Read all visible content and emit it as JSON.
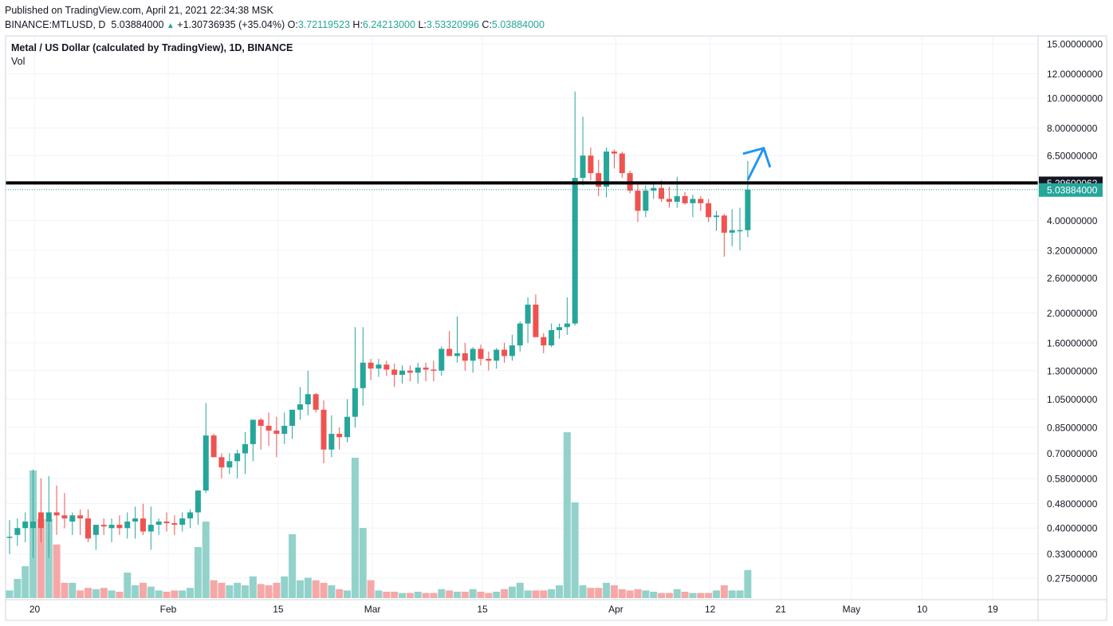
{
  "header": {
    "published": "Published on TradingView.com, April 21, 2021 22:34:38 MSK",
    "symbol": "BINANCE:MTLUSD, D",
    "last": "5.03884000",
    "change": "+1.30736935 (+35.04%)",
    "o_label": "O:",
    "o_value": "3.72119523",
    "h_label": "H:",
    "h_value": "6.24213000",
    "l_label": "L:",
    "l_value": "3.53320996",
    "c_label": "C:",
    "c_value": "5.03884000"
  },
  "legend": {
    "title": "Metal / US Dollar (calculated by TradingView), 1D, BINANCE",
    "volume": "Vol"
  },
  "colors": {
    "up": "#26a69a",
    "down": "#ef5350",
    "vol_up": "#93d2cb",
    "vol_down": "#f5a8a7",
    "hline": "#000000",
    "drawing": "#2196f3",
    "grid": "#f0f3fa"
  },
  "chart_data": {
    "type": "candlestick",
    "scale": "log",
    "y_ticks": [
      "15.00000000",
      "12.00000000",
      "10.00000000",
      "8.00000000",
      "6.50000000",
      "5.29600062",
      "5.03884000",
      "4.00000000",
      "3.20000000",
      "2.60000000",
      "2.00000000",
      "1.60000000",
      "1.30000000",
      "1.05000000",
      "0.85000000",
      "0.70000000",
      "0.58000000",
      "0.48000000",
      "0.40000000",
      "0.33000000",
      "0.27500000"
    ],
    "x_ticks": [
      "20",
      "Feb",
      "15",
      "Mar",
      "15",
      "Apr",
      "12",
      "21",
      "May",
      "10",
      "19"
    ],
    "horizontal_line": 5.29600062,
    "last_price": 5.03884,
    "candles": [
      [
        0.375,
        0.425,
        0.33,
        0.375,
        0.06
      ],
      [
        0.38,
        0.43,
        0.35,
        0.4,
        0.15
      ],
      [
        0.4,
        0.45,
        0.36,
        0.42,
        0.25
      ],
      [
        0.4,
        0.62,
        0.32,
        0.42,
        1.0
      ],
      [
        0.45,
        0.58,
        0.36,
        0.4,
        0.62
      ],
      [
        0.42,
        0.59,
        0.32,
        0.45,
        0.62
      ],
      [
        0.45,
        0.55,
        0.38,
        0.44,
        0.42
      ],
      [
        0.44,
        0.52,
        0.4,
        0.43,
        0.12
      ],
      [
        0.42,
        0.45,
        0.38,
        0.44,
        0.12
      ],
      [
        0.44,
        0.46,
        0.38,
        0.43,
        0.06
      ],
      [
        0.43,
        0.46,
        0.36,
        0.37,
        0.08
      ],
      [
        0.38,
        0.4,
        0.34,
        0.41,
        0.07
      ],
      [
        0.41,
        0.43,
        0.38,
        0.405,
        0.08
      ],
      [
        0.4,
        0.43,
        0.36,
        0.41,
        0.06
      ],
      [
        0.41,
        0.44,
        0.38,
        0.4,
        0.05
      ],
      [
        0.4,
        0.45,
        0.37,
        0.42,
        0.2
      ],
      [
        0.42,
        0.47,
        0.37,
        0.43,
        0.1
      ],
      [
        0.43,
        0.48,
        0.38,
        0.39,
        0.12
      ],
      [
        0.39,
        0.47,
        0.34,
        0.41,
        0.09
      ],
      [
        0.41,
        0.43,
        0.38,
        0.42,
        0.06
      ],
      [
        0.42,
        0.45,
        0.39,
        0.415,
        0.05
      ],
      [
        0.415,
        0.44,
        0.38,
        0.41,
        0.06
      ],
      [
        0.41,
        0.45,
        0.39,
        0.43,
        0.06
      ],
      [
        0.43,
        0.46,
        0.4,
        0.45,
        0.08
      ],
      [
        0.45,
        0.48,
        0.41,
        0.53,
        0.4
      ],
      [
        0.53,
        1.02,
        0.52,
        0.8,
        0.6
      ],
      [
        0.8,
        0.81,
        0.68,
        0.68,
        0.14
      ],
      [
        0.68,
        0.7,
        0.58,
        0.63,
        0.12
      ],
      [
        0.63,
        0.7,
        0.6,
        0.66,
        0.1
      ],
      [
        0.66,
        0.72,
        0.58,
        0.7,
        0.12
      ],
      [
        0.7,
        0.82,
        0.6,
        0.75,
        0.1
      ],
      [
        0.75,
        0.88,
        0.66,
        0.9,
        0.17
      ],
      [
        0.9,
        0.91,
        0.72,
        0.86,
        0.11
      ],
      [
        0.86,
        0.95,
        0.74,
        0.83,
        0.1
      ],
      [
        0.83,
        0.92,
        0.68,
        0.81,
        0.12
      ],
      [
        0.81,
        0.95,
        0.75,
        0.86,
        0.17
      ],
      [
        0.86,
        0.95,
        0.78,
        0.97,
        0.5
      ],
      [
        0.97,
        1.15,
        0.9,
        1.01,
        0.14
      ],
      [
        1.01,
        1.3,
        0.93,
        1.09,
        0.16
      ],
      [
        1.09,
        1.1,
        0.95,
        0.97,
        0.14
      ],
      [
        0.97,
        1.04,
        0.65,
        0.72,
        0.12
      ],
      [
        0.72,
        0.93,
        0.68,
        0.81,
        0.1
      ],
      [
        0.81,
        0.85,
        0.72,
        0.79,
        0.07
      ],
      [
        0.79,
        1.05,
        0.76,
        0.92,
        0.06
      ],
      [
        0.92,
        1.8,
        0.85,
        1.14,
        1.1
      ],
      [
        1.14,
        1.8,
        1.0,
        1.38,
        0.55
      ],
      [
        1.38,
        1.42,
        1.21,
        1.32,
        0.14
      ],
      [
        1.32,
        1.42,
        1.24,
        1.36,
        0.06
      ],
      [
        1.36,
        1.4,
        1.25,
        1.31,
        0.05
      ],
      [
        1.31,
        1.37,
        1.15,
        1.26,
        0.05
      ],
      [
        1.26,
        1.35,
        1.18,
        1.3,
        0.04
      ],
      [
        1.3,
        1.35,
        1.2,
        1.28,
        0.04
      ],
      [
        1.28,
        1.38,
        1.18,
        1.33,
        0.05
      ],
      [
        1.33,
        1.38,
        1.2,
        1.31,
        0.04
      ],
      [
        1.31,
        1.4,
        1.2,
        1.3,
        0.04
      ],
      [
        1.3,
        1.56,
        1.25,
        1.53,
        0.07
      ],
      [
        1.53,
        1.75,
        1.45,
        1.45,
        0.06
      ],
      [
        1.45,
        1.95,
        1.38,
        1.48,
        0.05
      ],
      [
        1.48,
        1.6,
        1.3,
        1.4,
        0.05
      ],
      [
        1.4,
        1.55,
        1.28,
        1.53,
        0.07
      ],
      [
        1.53,
        1.58,
        1.35,
        1.42,
        0.05
      ],
      [
        1.42,
        1.5,
        1.3,
        1.4,
        0.04
      ],
      [
        1.4,
        1.54,
        1.32,
        1.52,
        0.05
      ],
      [
        1.52,
        1.6,
        1.38,
        1.45,
        0.07
      ],
      [
        1.45,
        1.7,
        1.4,
        1.57,
        0.09
      ],
      [
        1.57,
        1.88,
        1.5,
        1.85,
        0.12
      ],
      [
        1.85,
        2.25,
        1.6,
        2.13,
        0.06
      ],
      [
        2.13,
        2.3,
        1.7,
        1.67,
        0.06
      ],
      [
        1.67,
        1.72,
        1.48,
        1.57,
        0.06
      ],
      [
        1.57,
        1.85,
        1.55,
        1.76,
        0.07
      ],
      [
        1.76,
        1.85,
        1.65,
        1.8,
        0.1
      ],
      [
        1.8,
        2.25,
        1.7,
        1.85,
        1.3
      ],
      [
        1.85,
        10.5,
        1.82,
        5.5,
        0.75
      ],
      [
        5.5,
        8.7,
        5.2,
        6.5,
        0.1
      ],
      [
        6.5,
        6.9,
        5.4,
        5.7,
        0.08
      ],
      [
        5.7,
        6.3,
        4.8,
        5.15,
        0.08
      ],
      [
        5.15,
        6.9,
        4.75,
        6.7,
        0.12
      ],
      [
        6.7,
        6.8,
        5.9,
        6.6,
        0.1
      ],
      [
        6.6,
        6.7,
        5.5,
        5.7,
        0.07
      ],
      [
        5.7,
        5.8,
        4.9,
        5.0,
        0.06
      ],
      [
        5.0,
        5.35,
        3.95,
        4.3,
        0.07
      ],
      [
        4.3,
        5.2,
        4.1,
        5.0,
        0.06
      ],
      [
        5.0,
        5.3,
        4.7,
        5.1,
        0.05
      ],
      [
        5.1,
        5.4,
        4.6,
        4.7,
        0.04
      ],
      [
        4.7,
        5.15,
        4.4,
        4.6,
        0.04
      ],
      [
        4.6,
        5.55,
        4.4,
        4.8,
        0.07
      ],
      [
        4.8,
        4.95,
        4.5,
        4.55,
        0.05
      ],
      [
        4.55,
        4.85,
        4.1,
        4.7,
        0.04
      ],
      [
        4.7,
        4.8,
        4.3,
        4.55,
        0.04
      ],
      [
        4.55,
        4.7,
        3.95,
        4.1,
        0.04
      ],
      [
        4.1,
        4.3,
        3.7,
        4.15,
        0.06
      ],
      [
        4.15,
        4.2,
        3.05,
        3.65,
        0.1
      ],
      [
        3.65,
        4.35,
        3.3,
        3.72,
        0.06
      ],
      [
        3.72,
        4.4,
        3.2,
        3.72,
        0.06
      ],
      [
        3.72,
        6.24,
        3.53,
        5.03884,
        0.22
      ]
    ]
  }
}
